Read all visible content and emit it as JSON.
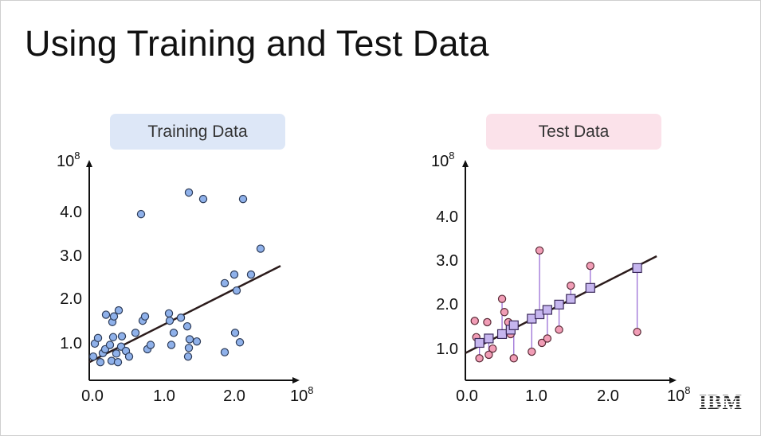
{
  "slide": {
    "title": "Using Training and Test Data",
    "logo_text": "IBM"
  },
  "chart_data": [
    {
      "type": "scatter",
      "title": "Training Data",
      "title_bg": "#dde7f7",
      "point_color": "#8fb1ea",
      "xlim": [
        0.0,
        2.5
      ],
      "ylim": [
        0.0,
        4.7
      ],
      "x_ticks": [
        "0.0",
        "1.0",
        "2.0"
      ],
      "y_ticks": [
        "1.0",
        "2.0",
        "3.0",
        "4.0"
      ],
      "x_multiplier": "10",
      "x_multiplier_exp": "8",
      "y_multiplier": "10",
      "y_multiplier_exp": "8",
      "fit_line": {
        "x": [
          0.0,
          2.4
        ],
        "y": [
          0.42,
          2.65
        ]
      },
      "points": [
        [
          0.05,
          0.55
        ],
        [
          0.07,
          0.85
        ],
        [
          0.11,
          0.98
        ],
        [
          0.14,
          0.42
        ],
        [
          0.17,
          0.63
        ],
        [
          0.2,
          0.72
        ],
        [
          0.21,
          1.52
        ],
        [
          0.26,
          0.82
        ],
        [
          0.28,
          0.45
        ],
        [
          0.29,
          1.35
        ],
        [
          0.3,
          1.0
        ],
        [
          0.31,
          1.48
        ],
        [
          0.34,
          0.62
        ],
        [
          0.36,
          0.42
        ],
        [
          0.37,
          1.62
        ],
        [
          0.4,
          0.78
        ],
        [
          0.41,
          1.02
        ],
        [
          0.46,
          0.68
        ],
        [
          0.5,
          0.55
        ],
        [
          0.58,
          1.1
        ],
        [
          0.65,
          3.85
        ],
        [
          0.67,
          1.38
        ],
        [
          0.7,
          1.48
        ],
        [
          0.73,
          0.72
        ],
        [
          0.77,
          0.82
        ],
        [
          1.0,
          1.55
        ],
        [
          1.01,
          1.38
        ],
        [
          1.03,
          0.82
        ],
        [
          1.06,
          1.1
        ],
        [
          1.15,
          1.45
        ],
        [
          1.23,
          1.25
        ],
        [
          1.24,
          0.55
        ],
        [
          1.25,
          0.75
        ],
        [
          1.26,
          0.95
        ],
        [
          1.25,
          4.35
        ],
        [
          1.35,
          0.9
        ],
        [
          1.43,
          4.2
        ],
        [
          1.7,
          0.65
        ],
        [
          1.7,
          2.25
        ],
        [
          1.82,
          2.45
        ],
        [
          1.83,
          1.1
        ],
        [
          1.85,
          2.08
        ],
        [
          1.89,
          0.88
        ],
        [
          1.93,
          4.2
        ],
        [
          2.03,
          2.45
        ],
        [
          2.15,
          3.05
        ]
      ]
    },
    {
      "type": "scatter",
      "title": "Test Data",
      "title_bg": "#fbe2ea",
      "point_color": "#f19db6",
      "prediction_color": "#c6b6ef",
      "residual_color": "#9b6fd6",
      "xlim": [
        0.0,
        2.5
      ],
      "ylim": [
        0.0,
        4.7
      ],
      "x_ticks": [
        "0.0",
        "1.0",
        "2.0"
      ],
      "y_ticks": [
        "1.0",
        "2.0",
        "3.0",
        "4.0"
      ],
      "x_multiplier": "10",
      "x_multiplier_exp": "8",
      "y_multiplier": "10",
      "y_multiplier_exp": "8",
      "fit_line": {
        "x": [
          0.0,
          2.45
        ],
        "y": [
          0.62,
          2.82
        ]
      },
      "points": [
        {
          "x": 0.18,
          "y": 0.5,
          "pred": 0.85
        },
        {
          "x": 0.3,
          "y": 0.58,
          "pred": 0.95
        },
        {
          "x": 0.47,
          "y": 1.85,
          "pred": 1.05
        },
        {
          "x": 0.58,
          "y": 1.05,
          "pred": 1.15
        },
        {
          "x": 0.62,
          "y": 0.5,
          "pred": 1.25
        },
        {
          "x": 0.85,
          "y": 0.65,
          "pred": 1.4
        },
        {
          "x": 0.95,
          "y": 2.95,
          "pred": 1.5
        },
        {
          "x": 1.05,
          "y": 0.95,
          "pred": 1.6
        },
        {
          "x": 1.2,
          "y": 1.15,
          "pred": 1.72
        },
        {
          "x": 1.35,
          "y": 2.15,
          "pred": 1.85
        },
        {
          "x": 1.6,
          "y": 2.6,
          "pred": 2.1
        },
        {
          "x": 2.2,
          "y": 1.1,
          "pred": 2.55
        }
      ],
      "extra_points": [
        [
          0.12,
          1.35
        ],
        [
          0.14,
          0.98
        ],
        [
          0.28,
          1.32
        ],
        [
          0.35,
          0.72
        ],
        [
          0.5,
          1.55
        ],
        [
          0.55,
          1.32
        ],
        [
          0.98,
          0.85
        ]
      ]
    }
  ]
}
